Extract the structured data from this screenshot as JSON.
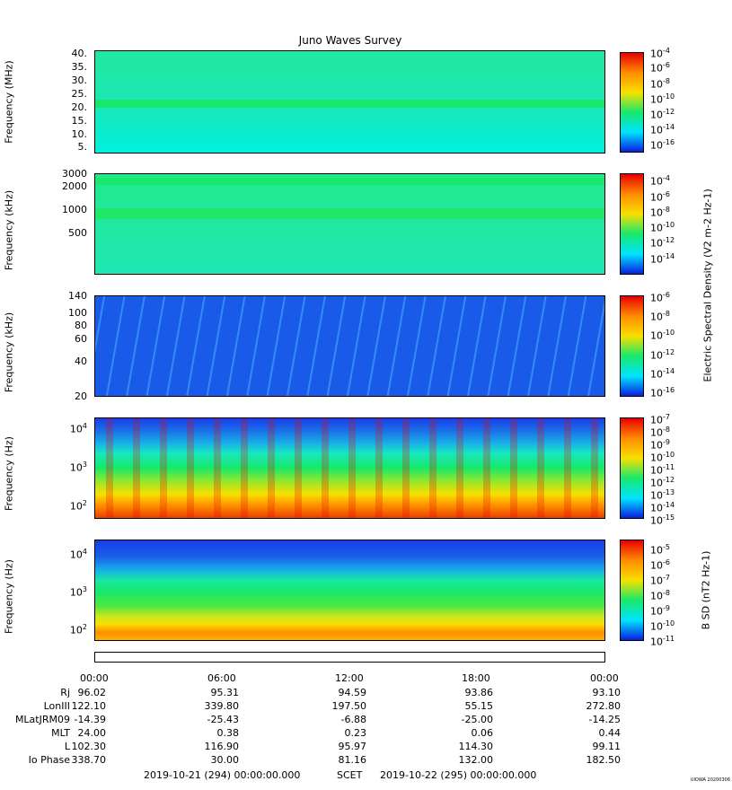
{
  "title": "Juno Waves Survey",
  "colors": {
    "blue": "#0a1ee0",
    "cyan": "#00e5ff",
    "green": "#18e86a",
    "yellow": "#f8e000",
    "orange": "#ff8c00",
    "red": "#e80000"
  },
  "panels": [
    {
      "ylabel": "Frequency (MHz)",
      "yticks": [
        "40.",
        "35.",
        "30.",
        "25.",
        "20.",
        "15.",
        "10.",
        "5."
      ],
      "cticks": [
        "10-4",
        "10-6",
        "10-8",
        "10-10",
        "10-12",
        "10-14",
        "10-16"
      ]
    },
    {
      "ylabel": "Frequency (kHz)",
      "yticks": [
        "3000",
        "2000",
        "1000",
        "500"
      ],
      "cticks": [
        "10-4",
        "10-6",
        "10-8",
        "10-10",
        "10-12",
        "10-14"
      ]
    },
    {
      "ylabel": "Frequency (kHz)",
      "yticks": [
        "140",
        "100",
        "80",
        "60",
        "40",
        "20"
      ],
      "cticks": [
        "10-6",
        "10-8",
        "10-10",
        "10-12",
        "10-14",
        "10-16"
      ]
    },
    {
      "ylabel": "Frequency (Hz)",
      "yticks": [
        "104",
        "103",
        "102"
      ],
      "cticks": [
        "10-7",
        "10-8",
        "10-9",
        "10-10",
        "10-11",
        "10-12",
        "10-13",
        "10-14",
        "10-15"
      ]
    },
    {
      "ylabel": "Frequency (Hz)",
      "yticks": [
        "104",
        "103",
        "102"
      ],
      "cticks": [
        "10-5",
        "10-6",
        "10-7",
        "10-8",
        "10-9",
        "10-10",
        "10-11"
      ]
    }
  ],
  "colorbar_labels": {
    "electric": "Electric Spectral Density (V2 m-2 Hz-1)",
    "magnetic": "B SD (nT2 Hz-1)"
  },
  "ephemeris": {
    "times": [
      "00:00",
      "06:00",
      "12:00",
      "18:00",
      "00:00"
    ],
    "rows": [
      {
        "label": "Rj",
        "values": [
          "96.02",
          "95.31",
          "94.59",
          "93.86",
          "93.10"
        ]
      },
      {
        "label": "LonIII",
        "values": [
          "122.10",
          "339.80",
          "197.50",
          "55.15",
          "272.80"
        ]
      },
      {
        "label": "MLatJRM09",
        "values": [
          "-14.39",
          "-25.43",
          "-6.88",
          "-25.00",
          "-14.25"
        ]
      },
      {
        "label": "MLT",
        "values": [
          "24.00",
          "0.38",
          "0.23",
          "0.06",
          "0.44"
        ]
      },
      {
        "label": "L",
        "values": [
          "102.30",
          "116.90",
          "95.97",
          "114.30",
          "99.11"
        ]
      },
      {
        "label": "Io Phase",
        "values": [
          "338.70",
          "30.00",
          "81.16",
          "132.00",
          "182.50"
        ]
      }
    ]
  },
  "scet": {
    "start": "2019-10-21 (294) 00:00:00.000",
    "label": "SCET",
    "end": "2019-10-22 (295) 00:00:00.000"
  },
  "stamp": "UIOWA 20200306"
}
